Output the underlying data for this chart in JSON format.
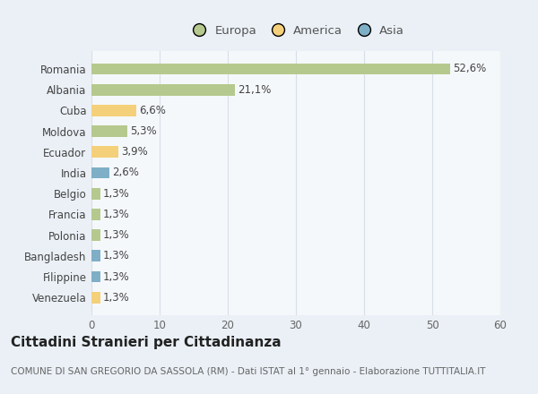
{
  "categories": [
    "Romania",
    "Albania",
    "Cuba",
    "Moldova",
    "Ecuador",
    "India",
    "Belgio",
    "Francia",
    "Polonia",
    "Bangladesh",
    "Filippine",
    "Venezuela"
  ],
  "values": [
    52.6,
    21.1,
    6.6,
    5.3,
    3.9,
    2.6,
    1.3,
    1.3,
    1.3,
    1.3,
    1.3,
    1.3
  ],
  "labels": [
    "52,6%",
    "21,1%",
    "6,6%",
    "5,3%",
    "3,9%",
    "2,6%",
    "1,3%",
    "1,3%",
    "1,3%",
    "1,3%",
    "1,3%",
    "1,3%"
  ],
  "continents": [
    "Europa",
    "Europa",
    "America",
    "Europa",
    "America",
    "Asia",
    "Europa",
    "Europa",
    "Europa",
    "Asia",
    "Asia",
    "America"
  ],
  "colors": {
    "Europa": "#b5c98e",
    "America": "#f5d07a",
    "Asia": "#7fafc7"
  },
  "legend_items": [
    "Europa",
    "America",
    "Asia"
  ],
  "legend_colors": [
    "#b5c98e",
    "#f5d07a",
    "#7fafc7"
  ],
  "xlim": [
    0,
    60
  ],
  "xticks": [
    0,
    10,
    20,
    30,
    40,
    50,
    60
  ],
  "title": "Cittadini Stranieri per Cittadinanza",
  "subtitle": "COMUNE DI SAN GREGORIO DA SASSOLA (RM) - Dati ISTAT al 1° gennaio - Elaborazione TUTTITALIA.IT",
  "background_color": "#eaf0f6",
  "plot_bg_color": "#f5f8fb",
  "grid_color": "#d8dfe8",
  "title_fontsize": 11,
  "subtitle_fontsize": 7.5,
  "label_fontsize": 8.5,
  "tick_fontsize": 8.5,
  "legend_fontsize": 9.5,
  "bar_height": 0.55
}
